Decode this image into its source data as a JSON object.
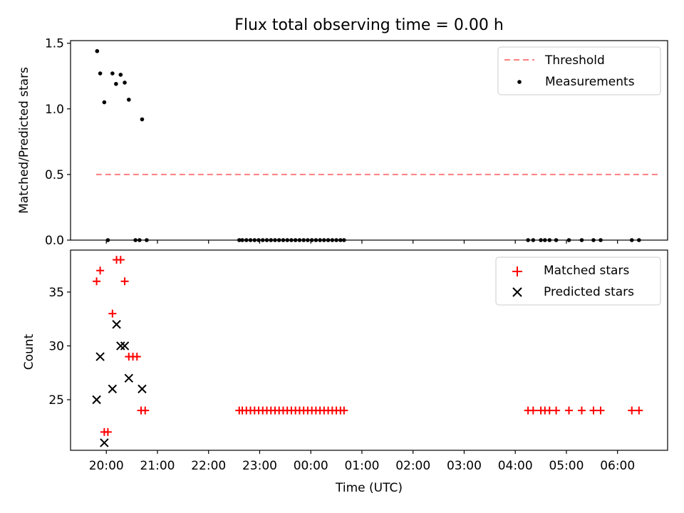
{
  "colors": {
    "threshold": "#ff7f7f",
    "measurement": "#000000",
    "matched": "#ff0000",
    "predicted": "#000000",
    "axis": "#000000",
    "background": "#ffffff"
  },
  "chart_data": {
    "title": "Flux total observing time = 0.00 h",
    "xlabel": "Time (UTC)",
    "xticks": [
      {
        "x": 20,
        "label": "20:00"
      },
      {
        "x": 21,
        "label": "21:00"
      },
      {
        "x": 22,
        "label": "22:00"
      },
      {
        "x": 23,
        "label": "23:00"
      },
      {
        "x": 24,
        "label": "00:00"
      },
      {
        "x": 25,
        "label": "01:00"
      },
      {
        "x": 26,
        "label": "02:00"
      },
      {
        "x": 27,
        "label": "03:00"
      },
      {
        "x": 28,
        "label": "04:00"
      },
      {
        "x": 29,
        "label": "05:00"
      },
      {
        "x": 30,
        "label": "06:00"
      }
    ],
    "xlim": [
      19.3,
      30.98
    ],
    "panels": [
      {
        "type": "scatter",
        "ylabel": "Matched/Predicted stars",
        "ylim": [
          0,
          1.52
        ],
        "yticks": [
          {
            "y": 0.0,
            "label": "0.0"
          },
          {
            "y": 0.5,
            "label": "0.5"
          },
          {
            "y": 1.0,
            "label": "1.0"
          },
          {
            "y": 1.5,
            "label": "1.5"
          }
        ],
        "legend": [
          {
            "label": "Threshold",
            "kind": "dash"
          },
          {
            "label": "Measurements",
            "kind": "dot"
          }
        ],
        "threshold": {
          "name": "Threshold",
          "y": 0.5,
          "x": [
            19.8,
            30.8
          ]
        },
        "measurements": {
          "name": "Measurements",
          "x": [
            19.82,
            19.88,
            19.96,
            20.03,
            20.12,
            20.19,
            20.28,
            20.36,
            20.44,
            20.7,
            20.57,
            20.65,
            20.79,
            22.6,
            22.66,
            22.74,
            22.82,
            22.9,
            22.98,
            23.06,
            23.14,
            23.22,
            23.3,
            23.38,
            23.46,
            23.54,
            23.62,
            23.7,
            23.78,
            23.86,
            23.94,
            24.02,
            24.1,
            24.18,
            24.26,
            24.34,
            24.42,
            24.5,
            24.58,
            24.65,
            28.25,
            28.35,
            28.5,
            28.58,
            28.67,
            28.8,
            29.05,
            29.3,
            29.53,
            29.67,
            30.28,
            30.42
          ],
          "y": [
            1.44,
            1.27,
            1.05,
            0,
            1.27,
            1.19,
            1.26,
            1.2,
            1.07,
            0.92,
            0,
            0,
            0,
            0,
            0,
            0,
            0,
            0,
            0,
            0,
            0,
            0,
            0,
            0,
            0,
            0,
            0,
            0,
            0,
            0,
            0,
            0,
            0,
            0,
            0,
            0,
            0,
            0,
            0,
            0,
            0,
            0,
            0,
            0,
            0,
            0,
            0,
            0,
            0,
            0,
            0,
            0
          ]
        }
      },
      {
        "type": "scatter",
        "ylabel": "Count",
        "ylim": [
          20.3,
          38.9
        ],
        "yticks": [
          {
            "y": 25,
            "label": "25"
          },
          {
            "y": 30,
            "label": "30"
          },
          {
            "y": 35,
            "label": "35"
          }
        ],
        "legend": [
          {
            "label": "Matched stars",
            "kind": "plus"
          },
          {
            "label": "Predicted stars",
            "kind": "cross"
          }
        ],
        "matched": {
          "name": "Matched stars",
          "x": [
            19.81,
            19.88,
            19.96,
            20.03,
            20.12,
            20.2,
            20.28,
            20.36,
            20.44,
            20.52,
            20.6,
            20.68,
            20.76,
            22.6,
            22.66,
            22.74,
            22.82,
            22.9,
            22.98,
            23.06,
            23.14,
            23.22,
            23.3,
            23.38,
            23.46,
            23.54,
            23.62,
            23.7,
            23.78,
            23.86,
            23.94,
            24.02,
            24.1,
            24.18,
            24.26,
            24.34,
            24.42,
            24.5,
            24.58,
            24.65,
            28.25,
            28.35,
            28.5,
            28.58,
            28.67,
            28.8,
            29.05,
            29.3,
            29.53,
            29.67,
            30.28,
            30.42
          ],
          "y": [
            36,
            37,
            22,
            22,
            33,
            38,
            38,
            36,
            29,
            29,
            29,
            24,
            24,
            24,
            24,
            24,
            24,
            24,
            24,
            24,
            24,
            24,
            24,
            24,
            24,
            24,
            24,
            24,
            24,
            24,
            24,
            24,
            24,
            24,
            24,
            24,
            24,
            24,
            24,
            24,
            24,
            24,
            24,
            24,
            24,
            24,
            24,
            24,
            24,
            24,
            24,
            24
          ]
        },
        "predicted": {
          "name": "Predicted stars",
          "x": [
            19.81,
            19.88,
            19.96,
            20.12,
            20.2,
            20.28,
            20.36,
            20.44,
            20.7
          ],
          "y": [
            25,
            29,
            21,
            26,
            32,
            30,
            30,
            27,
            26
          ]
        }
      }
    ]
  }
}
